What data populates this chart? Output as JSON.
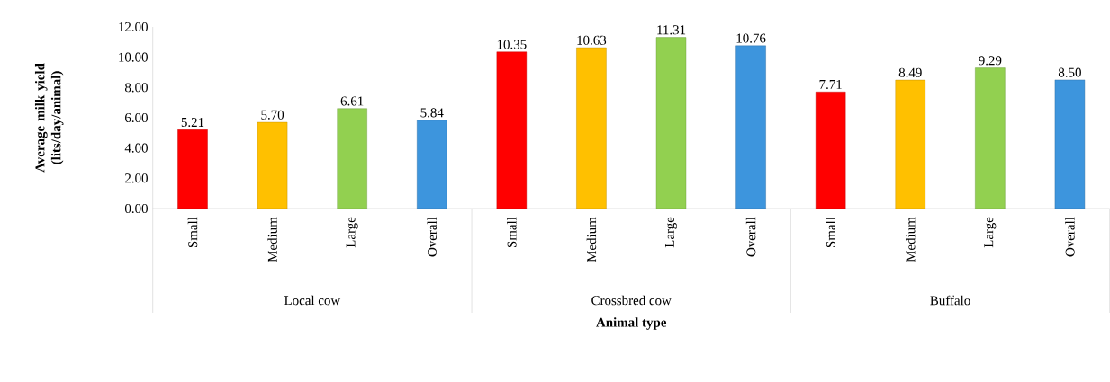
{
  "chart_data": {
    "type": "bar",
    "xlabel": "Animal type",
    "ylabel": "Average milk yield (lits/day/animal)",
    "categories": [
      "Small",
      "Medium",
      "Large",
      "Overall",
      "Small",
      "Medium",
      "Large",
      "Overall",
      "Small",
      "Medium",
      "Large",
      "Overall"
    ],
    "values": [
      5.21,
      5.7,
      6.61,
      5.84,
      10.35,
      10.63,
      11.31,
      10.76,
      7.71,
      8.49,
      9.29,
      8.5
    ],
    "value_labels": [
      "5.21",
      "5.70",
      "6.61",
      "5.84",
      "10.35",
      "10.63",
      "11.31",
      "10.76",
      "7.71",
      "8.49",
      "9.29",
      "8.50"
    ],
    "colors": [
      "#ff0000",
      "#ffc000",
      "#92d050",
      "#3d95dd",
      "#ff0000",
      "#ffc000",
      "#92d050",
      "#3d95dd",
      "#ff0000",
      "#ffc000",
      "#92d050",
      "#3d95dd"
    ],
    "annotations": [
      "Local cow",
      "Crossbred cow",
      "Buffalo"
    ],
    "ylim": [
      0,
      12
    ],
    "yticks": [
      {
        "value": 0,
        "label": "0.00"
      },
      {
        "value": 2,
        "label": "2.00"
      },
      {
        "value": 4,
        "label": "4.00"
      },
      {
        "value": 6,
        "label": "6.00"
      },
      {
        "value": 8,
        "label": "8.00"
      },
      {
        "value": 10,
        "label": "10.00"
      },
      {
        "value": 12,
        "label": "12.00"
      }
    ],
    "grid": false
  }
}
